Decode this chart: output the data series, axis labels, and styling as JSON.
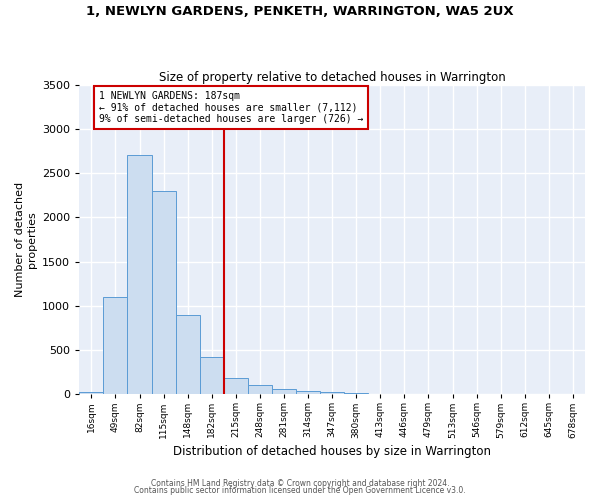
{
  "title": "1, NEWLYN GARDENS, PENKETH, WARRINGTON, WA5 2UX",
  "subtitle": "Size of property relative to detached houses in Warrington",
  "xlabel": "Distribution of detached houses by size in Warrington",
  "ylabel": "Number of detached\nproperties",
  "bin_labels": [
    "16sqm",
    "49sqm",
    "82sqm",
    "115sqm",
    "148sqm",
    "182sqm",
    "215sqm",
    "248sqm",
    "281sqm",
    "314sqm",
    "347sqm",
    "380sqm",
    "413sqm",
    "446sqm",
    "479sqm",
    "513sqm",
    "546sqm",
    "579sqm",
    "612sqm",
    "645sqm",
    "678sqm"
  ],
  "bar_values": [
    30,
    1100,
    2700,
    2300,
    900,
    420,
    185,
    100,
    55,
    35,
    20,
    10,
    5,
    3,
    2,
    1,
    0,
    0,
    0,
    0,
    0
  ],
  "bar_color": "#ccddf0",
  "bar_edge_color": "#5b9bd5",
  "vline_x": 5.5,
  "vline_color": "#cc0000",
  "annotation_text": "1 NEWLYN GARDENS: 187sqm\n← 91% of detached houses are smaller (7,112)\n9% of semi-detached houses are larger (726) →",
  "annotation_box_color": "#ffffff",
  "annotation_box_edge": "#cc0000",
  "ylim": [
    0,
    3500
  ],
  "yticks": [
    0,
    500,
    1000,
    1500,
    2000,
    2500,
    3000,
    3500
  ],
  "footer1": "Contains HM Land Registry data © Crown copyright and database right 2024.",
  "footer2": "Contains public sector information licensed under the Open Government Licence v3.0.",
  "background_color": "#ffffff",
  "plot_bg_color": "#e8eef8",
  "grid_color": "#ffffff"
}
